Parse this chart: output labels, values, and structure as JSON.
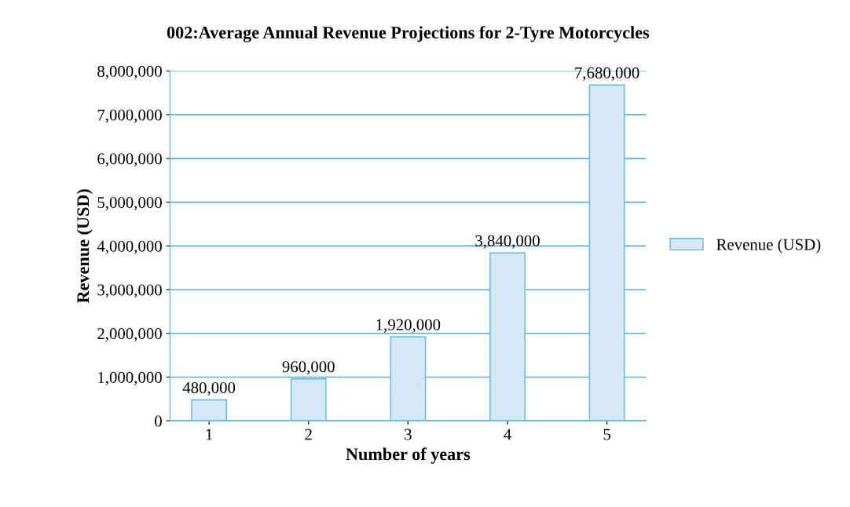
{
  "chart_data": {
    "type": "bar",
    "title": "002:Average Annual Revenue Projections for 2-Tyre Motorcycles",
    "xlabel": "Number of years",
    "ylabel": "Revenue (USD)",
    "categories": [
      "1",
      "2",
      "3",
      "4",
      "5"
    ],
    "series": [
      {
        "name": "Revenue (USD)",
        "color": "#d4e8f5",
        "values": [
          480000,
          960000,
          1920000,
          3840000,
          7680000
        ],
        "value_labels": [
          "480,000",
          "960,000",
          "1,920,000",
          "3,840,000",
          "7,680,000"
        ]
      }
    ],
    "ylim": [
      0,
      8000000
    ],
    "yticks": [
      {
        "value": 0,
        "label": "0"
      },
      {
        "value": 1000000,
        "label": "1,000,000"
      },
      {
        "value": 2000000,
        "label": "2,000,000"
      },
      {
        "value": 3000000,
        "label": "3,000,000"
      },
      {
        "value": 4000000,
        "label": "4,000,000"
      },
      {
        "value": 5000000,
        "label": "5,000,000"
      },
      {
        "value": 6000000,
        "label": "6,000,000"
      },
      {
        "value": 7000000,
        "label": "7,000,000"
      },
      {
        "value": 8000000,
        "label": "8,000,000"
      }
    ],
    "grid": "y",
    "legend": "right"
  }
}
